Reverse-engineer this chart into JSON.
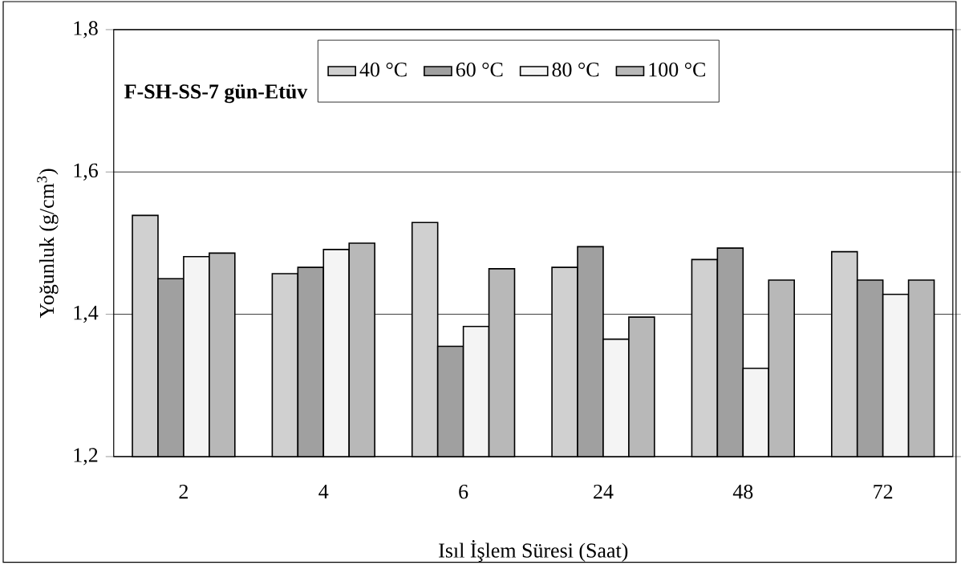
{
  "chart_data": {
    "type": "bar",
    "title": "F-SH-SS-7 gün-Etüv",
    "xlabel": "Isıl İşlem Süresi (Saat)",
    "ylabel": "Yoğunluk (g/cm$^{3}$)",
    "categories": [
      "2",
      "4",
      "6",
      "24",
      "48",
      "72"
    ],
    "series": [
      {
        "name": "40 °C",
        "color": "#d0d0d0",
        "values": [
          1.539,
          1.457,
          1.529,
          1.466,
          1.477,
          1.488
        ]
      },
      {
        "name": "60 °C",
        "color": "#a0a0a0",
        "values": [
          1.45,
          1.466,
          1.355,
          1.495,
          1.493,
          1.448
        ]
      },
      {
        "name": "80 °C",
        "color": "#f4f4f4",
        "values": [
          1.481,
          1.491,
          1.383,
          1.365,
          1.324,
          1.428
        ]
      },
      {
        "name": "100 °C",
        "color": "#b8b8b8",
        "values": [
          1.486,
          1.5,
          1.464,
          1.396,
          1.448,
          1.448
        ]
      }
    ],
    "ylim": [
      1.2,
      1.8
    ],
    "yticks": [
      {
        "value": 1.2,
        "label": "1,2"
      },
      {
        "value": 1.4,
        "label": "1,4"
      },
      {
        "value": 1.6,
        "label": "1,6"
      },
      {
        "value": 1.8,
        "label": "1,8"
      }
    ],
    "grid": "y",
    "legend": "top"
  }
}
